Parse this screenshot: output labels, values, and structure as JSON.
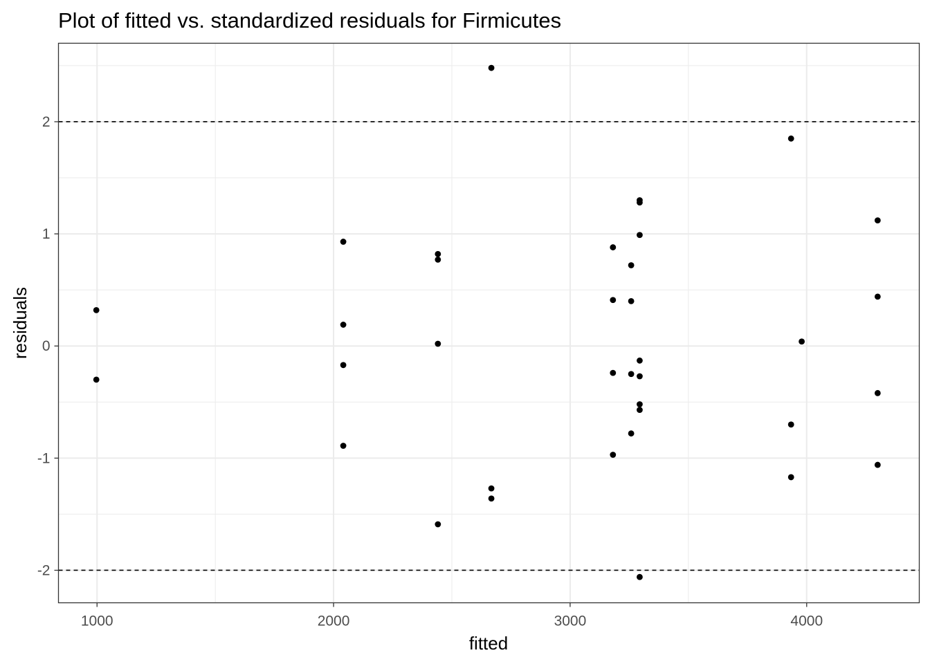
{
  "chart_data": {
    "type": "scatter",
    "title": "Plot of fitted vs. standardized residuals for Firmicutes",
    "xlabel": "fitted",
    "ylabel": "residuals",
    "xlim": [
      837,
      4476
    ],
    "ylim": [
      -2.29,
      2.7
    ],
    "x_ticks": [
      1000,
      2000,
      3000,
      4000
    ],
    "x_tick_labels": [
      "1000",
      "2000",
      "3000",
      "4000"
    ],
    "y_ticks": [
      -2,
      -1,
      0,
      1,
      2
    ],
    "y_tick_labels": [
      "-2",
      "-1",
      "0",
      "1",
      "2"
    ],
    "x_minor_ticks": [
      1500,
      2500,
      3500
    ],
    "y_minor_ticks": [
      -1.5,
      -0.5,
      0.5,
      1.5,
      2.5
    ],
    "reference_lines": [
      2,
      -2
    ],
    "grid": true,
    "legend": "none",
    "point_color": "#000000",
    "reference_line_color": "#000000",
    "grid_color": "#ebebeb",
    "points": [
      {
        "x": 997,
        "y": 0.32
      },
      {
        "x": 997,
        "y": -0.3
      },
      {
        "x": 2041,
        "y": 0.93
      },
      {
        "x": 2041,
        "y": 0.19
      },
      {
        "x": 2041,
        "y": -0.17
      },
      {
        "x": 2041,
        "y": -0.89
      },
      {
        "x": 2441,
        "y": 0.82
      },
      {
        "x": 2441,
        "y": 0.77
      },
      {
        "x": 2441,
        "y": 0.02
      },
      {
        "x": 2441,
        "y": -1.59
      },
      {
        "x": 2667,
        "y": 2.48
      },
      {
        "x": 2667,
        "y": -1.27
      },
      {
        "x": 2667,
        "y": -1.36
      },
      {
        "x": 3181,
        "y": 0.88
      },
      {
        "x": 3181,
        "y": 0.41
      },
      {
        "x": 3181,
        "y": -0.24
      },
      {
        "x": 3181,
        "y": -0.97
      },
      {
        "x": 3258,
        "y": 0.72
      },
      {
        "x": 3258,
        "y": 0.4
      },
      {
        "x": 3258,
        "y": -0.25
      },
      {
        "x": 3258,
        "y": -0.78
      },
      {
        "x": 3294,
        "y": 1.3
      },
      {
        "x": 3294,
        "y": 1.28
      },
      {
        "x": 3294,
        "y": 0.99
      },
      {
        "x": 3294,
        "y": -0.13
      },
      {
        "x": 3294,
        "y": -0.27
      },
      {
        "x": 3294,
        "y": -0.52
      },
      {
        "x": 3294,
        "y": -0.57
      },
      {
        "x": 3294,
        "y": -2.06
      },
      {
        "x": 3934,
        "y": 1.85
      },
      {
        "x": 3934,
        "y": -0.7
      },
      {
        "x": 3934,
        "y": -1.17
      },
      {
        "x": 3979,
        "y": 0.04
      },
      {
        "x": 4300,
        "y": 1.12
      },
      {
        "x": 4300,
        "y": 0.44
      },
      {
        "x": 4300,
        "y": -0.42
      },
      {
        "x": 4300,
        "y": -1.06
      }
    ]
  }
}
